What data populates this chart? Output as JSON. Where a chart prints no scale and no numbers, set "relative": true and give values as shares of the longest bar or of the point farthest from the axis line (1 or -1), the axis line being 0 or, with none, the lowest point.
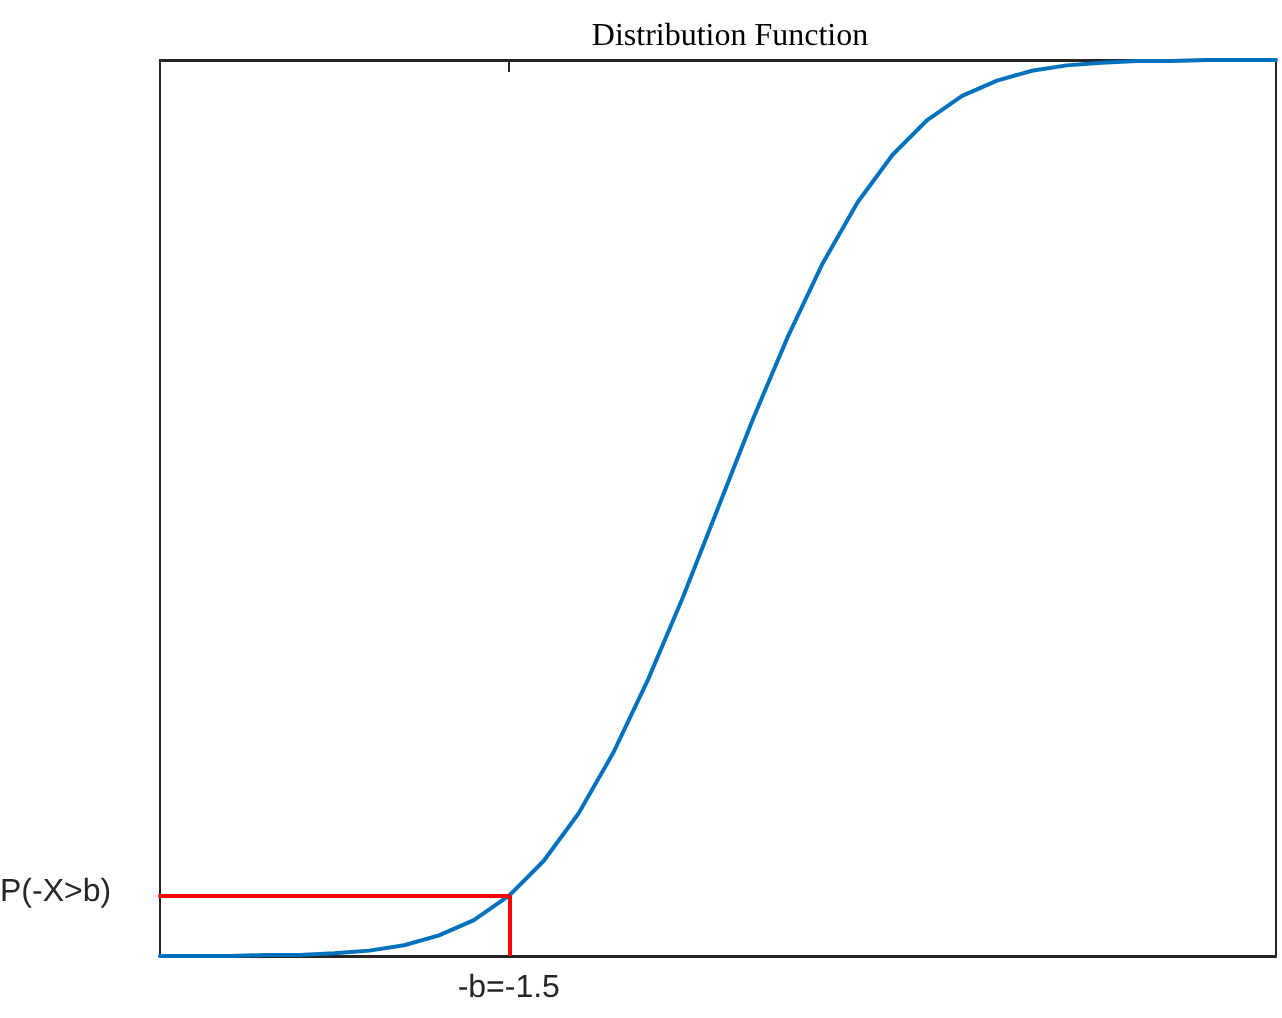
{
  "chart_data": {
    "type": "line",
    "title": "Distribution Function",
    "relative": true,
    "categories": [
      null,
      null,
      null,
      null,
      null,
      null,
      null,
      null,
      null,
      null,
      null,
      null,
      null,
      null,
      null,
      null,
      null,
      null,
      null,
      null,
      null,
      null,
      null,
      null,
      null,
      null,
      null,
      null,
      null,
      null,
      null,
      null,
      null
    ],
    "series": [
      {
        "color": "#0072bd",
        "values": [
          0,
          0,
          0,
          0.001,
          0.001,
          0.003,
          0.006,
          0.012,
          0.023,
          0.04,
          0.067,
          0.106,
          0.159,
          0.227,
          0.309,
          0.401,
          0.5,
          0.599,
          0.691,
          0.773,
          0.841,
          0.894,
          0.933,
          0.96,
          0.977,
          0.988,
          0.994,
          0.997,
          0.999,
          0.999,
          1,
          1,
          1
        ]
      },
      {
        "color": "#ff0000",
        "values": [
          0.067,
          0.067,
          0.067,
          0.067,
          0.067,
          0.067,
          0.067,
          0.067,
          0.067,
          0.067,
          0.067,
          null,
          null,
          null,
          null,
          null,
          null,
          null,
          null,
          null,
          null,
          null,
          null,
          null,
          null,
          null,
          null,
          null,
          null,
          null,
          null,
          null,
          null
        ]
      }
    ],
    "annotations": [
      "P(-X>b)",
      "-b=-1.5"
    ],
    "marker": "none",
    "line_style": "solid"
  }
}
